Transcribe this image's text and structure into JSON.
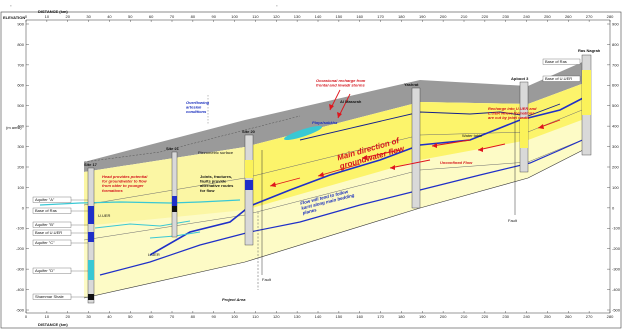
{
  "top_marks": [
    "\"",
    "\""
  ],
  "axis": {
    "elevation_label": "ELEVATION",
    "distance_label": "DISTANCE (km)",
    "distance_label_bottom": "DISTANCE (km)",
    "units_label": "(m amsl)",
    "x_ticks": [
      "0",
      "10",
      "20",
      "30",
      "40",
      "50",
      "60",
      "70",
      "80",
      "90",
      "100",
      "110",
      "120",
      "130",
      "140",
      "150",
      "160",
      "170",
      "180",
      "190",
      "200",
      "210",
      "220",
      "230",
      "240",
      "250",
      "260",
      "270",
      "280"
    ],
    "left_y_ticks": [
      "900",
      "800",
      "700",
      "600",
      "500",
      "400",
      "300",
      "200",
      "100",
      "0",
      "-100",
      "-200",
      "-300",
      "-400",
      "-500"
    ],
    "right_y_ticks": [
      "900",
      "800",
      "700",
      "600",
      "500",
      "400",
      "300",
      "200",
      "100",
      "0",
      "-100",
      "-200",
      "-300",
      "-400",
      "-500"
    ]
  },
  "wells": {
    "site17": "Site 17",
    "site21": "Site 21",
    "site20": "Site 20",
    "yashrat": "Yashrat",
    "apboot3": "Apboot 3",
    "rasnagrah": "Ras Nagrah"
  },
  "layers_left": [
    "Aquifer \"A\"",
    "Base of Ras",
    "Aquifer \"B\"",
    "Base of U.UER",
    "Aquifer \"C\"",
    "Aquifer \"D\"",
    "Shammar Shale"
  ],
  "layers_right": [
    "Base of Ras",
    "Base of U.UER"
  ],
  "labels": {
    "u_uer": "U.UER",
    "l_uer": "L.UER",
    "fault_mid": "Fault",
    "fault_right": "Fault",
    "piezometric": "Piezometric surface",
    "al_massrah": "Al Massrah",
    "playa": "Playa/sabkha",
    "water_table": "Water table",
    "project_area": "Project Area"
  },
  "annotations": {
    "overflowing": "Overflowing artesian conditions",
    "recharge": "Occasional recharge from frontal and inwadi storms",
    "discharge": "Recharge into U.UER and L.UER where formations are cut by jebel wadis",
    "head": "Head provides potential for groundwater to flow from older to younger formations",
    "joints": "Joints, fractures, faults provide alternative routes for flow",
    "main_dir": "Main direction of groundwater flow",
    "flow_follow": "Flow will tend to follow karst along main bedding planes",
    "unconf": "Unconfined Flow"
  },
  "colors": {
    "yellow": "#fbf25a",
    "pale_yellow": "#fdfbc6",
    "grey": "#9a9a9a",
    "cyan": "#39c8d4",
    "blue": "#1f2fc8",
    "red": "#e0141c"
  }
}
